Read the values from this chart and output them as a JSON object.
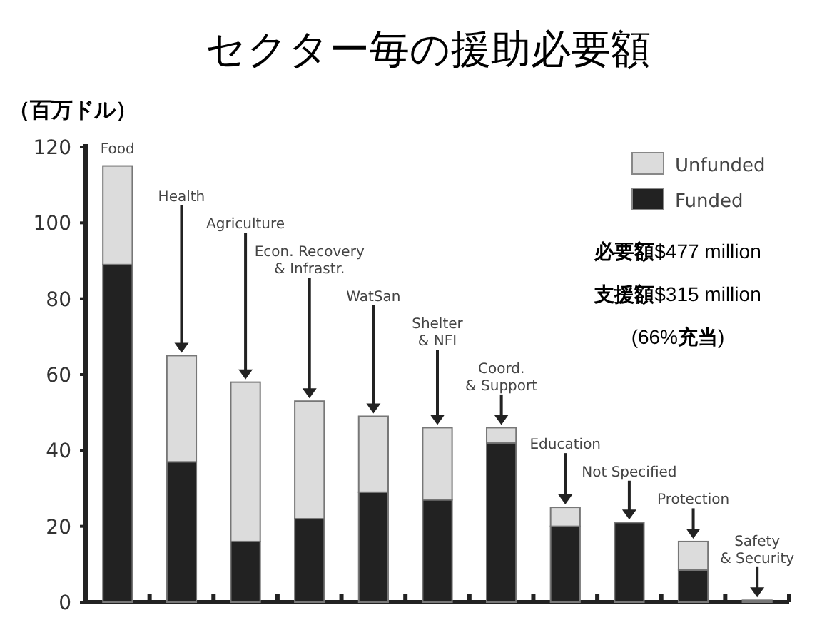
{
  "chart_data": {
    "type": "bar",
    "title": "セクター毎の援助必要額",
    "ylabel": "（百万ドル）",
    "categories": [
      "Food",
      "Health",
      "Agriculture",
      "Econ. Recovery\n& Infrastr.",
      "WatSan",
      "Shelter\n& NFI",
      "Coord.\n& Support",
      "Education",
      "Not Specified",
      "Protection",
      "Safety\n& Security"
    ],
    "series": [
      {
        "name": "Funded",
        "color": "#222222",
        "values": [
          89,
          37,
          16,
          22,
          29,
          27,
          42,
          20,
          21,
          8.5,
          0
        ]
      },
      {
        "name": "Unfunded",
        "color": "#dcdcdc",
        "values": [
          26,
          28,
          42,
          31,
          20,
          19,
          4,
          5,
          0,
          7.5,
          0.5
        ]
      }
    ],
    "stacked": true,
    "ylim": [
      0,
      120
    ],
    "yticks": [
      0,
      20,
      40,
      60,
      80,
      100,
      120
    ],
    "legend": "top right",
    "annotations": [
      "**必要額**$477 million",
      "**支援額**$315 million",
      "(66%**充当**)"
    ]
  }
}
